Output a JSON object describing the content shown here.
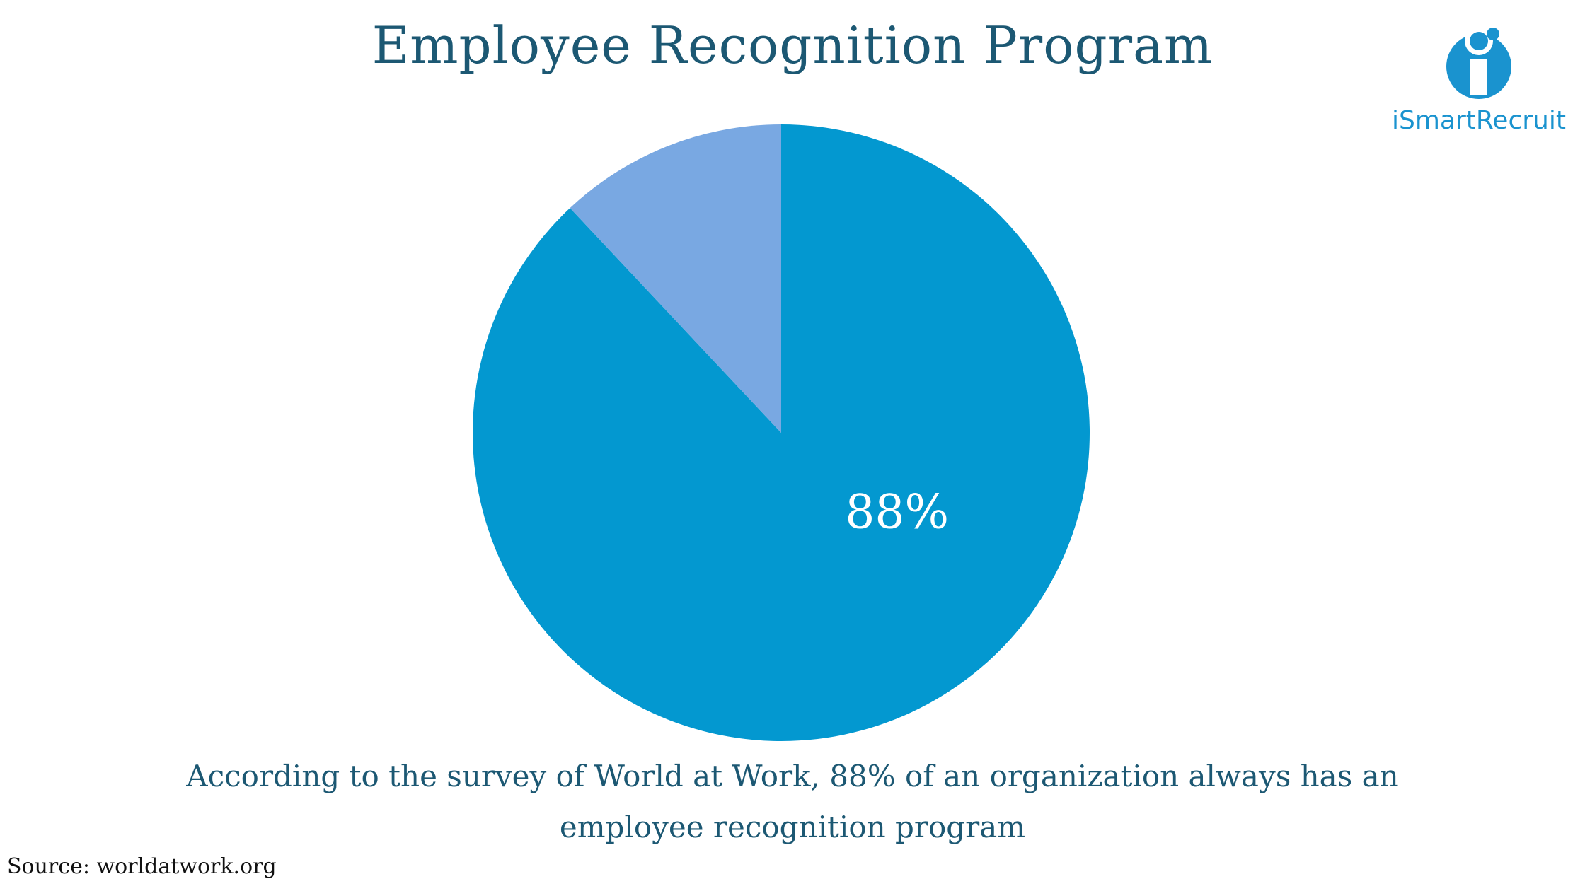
{
  "title": "Employee Recognition Program",
  "logo": {
    "name": "iSmartRecruit",
    "color": "#1a93cf",
    "icon": "ismartrecruit-logo-icon"
  },
  "chart_data": {
    "type": "pie",
    "slices": [
      {
        "label": "88%",
        "value": 88,
        "color": "#0398d0"
      },
      {
        "label": "",
        "value": 12,
        "color": "#79a8e2"
      }
    ]
  },
  "caption": {
    "line1": "According to the survey of World at Work, 88% of an organization always has an",
    "line2": "employee recognition program"
  },
  "source": "Source: worldatwork.org",
  "colors": {
    "title": "#1c5873",
    "background": "#ffffff"
  }
}
